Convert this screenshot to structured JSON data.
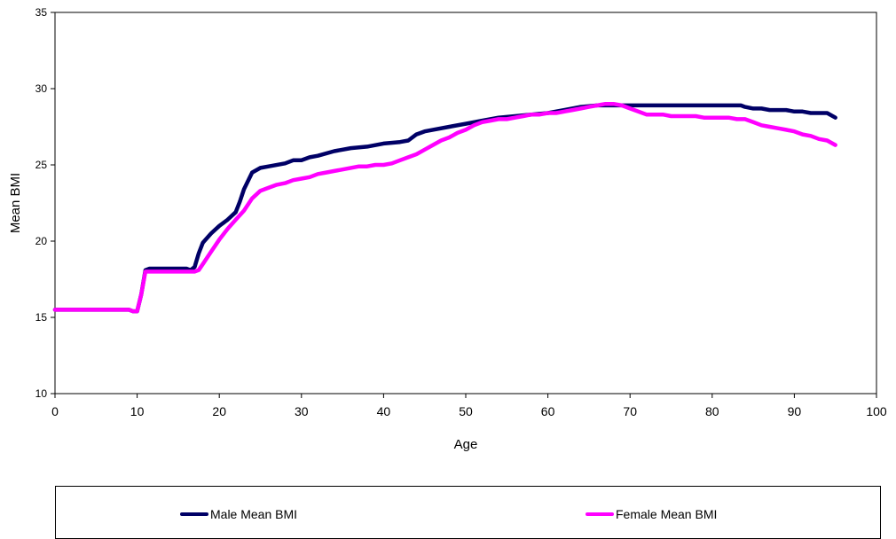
{
  "chart_data": {
    "type": "line",
    "xlabel": "Age",
    "ylabel": "Mean  BMI",
    "xlim": [
      0,
      100
    ],
    "ylim": [
      10,
      35
    ],
    "xticks": [
      0,
      10,
      20,
      30,
      40,
      50,
      60,
      70,
      80,
      90,
      100
    ],
    "yticks": [
      10,
      15,
      20,
      25,
      30,
      35
    ],
    "legend_position": "bottom",
    "series": [
      {
        "name": "Male Mean BMI",
        "color": "#000066",
        "x": [
          0,
          9,
          9.5,
          10,
          10.5,
          11,
          11.5,
          12,
          14,
          16,
          16.5,
          17,
          17.5,
          18,
          19,
          20,
          21,
          22,
          22.5,
          23,
          24,
          25,
          26,
          28,
          29,
          30,
          31,
          32,
          34,
          36,
          38,
          40,
          42,
          43,
          44,
          45,
          46,
          48,
          50,
          52,
          54,
          56,
          58,
          60,
          62,
          64,
          66,
          68,
          70,
          72,
          74,
          76,
          78,
          80,
          82,
          83.5,
          84,
          85,
          86,
          87,
          88,
          89,
          90,
          91,
          92,
          93,
          94,
          95
        ],
        "y": [
          15.5,
          15.5,
          15.4,
          15.4,
          16.5,
          18.1,
          18.2,
          18.2,
          18.2,
          18.2,
          18.1,
          18.3,
          19.2,
          19.9,
          20.5,
          21.0,
          21.4,
          21.9,
          22.6,
          23.4,
          24.5,
          24.8,
          24.9,
          25.1,
          25.3,
          25.3,
          25.5,
          25.6,
          25.9,
          26.1,
          26.2,
          26.4,
          26.5,
          26.6,
          27.0,
          27.2,
          27.3,
          27.5,
          27.7,
          27.9,
          28.1,
          28.2,
          28.3,
          28.4,
          28.6,
          28.8,
          28.9,
          28.9,
          28.9,
          28.9,
          28.9,
          28.9,
          28.9,
          28.9,
          28.9,
          28.9,
          28.8,
          28.7,
          28.7,
          28.6,
          28.6,
          28.6,
          28.5,
          28.5,
          28.4,
          28.4,
          28.4,
          28.1
        ]
      },
      {
        "name": "Female Mean BMI",
        "color": "#ff00ff",
        "x": [
          0,
          9,
          9.5,
          10,
          10.5,
          11,
          11.5,
          12,
          14,
          16,
          17,
          17.5,
          18,
          19,
          20,
          21,
          22,
          23,
          24,
          25,
          26,
          27,
          28,
          29,
          30,
          31,
          32,
          33,
          34,
          35,
          36,
          37,
          38,
          39,
          40,
          41,
          42,
          43,
          44,
          45,
          46,
          47,
          48,
          49,
          50,
          51,
          52,
          53,
          54,
          55,
          56,
          57,
          58,
          59,
          60,
          61,
          62,
          63,
          64,
          65,
          66,
          67,
          68,
          69,
          70,
          71,
          72,
          73,
          74,
          75,
          76,
          77,
          78,
          79,
          80,
          81,
          82,
          83,
          84,
          85,
          86,
          87,
          88,
          89,
          90,
          91,
          92,
          93,
          94,
          95
        ],
        "y": [
          15.5,
          15.5,
          15.4,
          15.4,
          16.5,
          18.0,
          18.0,
          18.0,
          18.0,
          18.0,
          18.0,
          18.1,
          18.5,
          19.3,
          20.1,
          20.8,
          21.4,
          22.0,
          22.8,
          23.3,
          23.5,
          23.7,
          23.8,
          24.0,
          24.1,
          24.2,
          24.4,
          24.5,
          24.6,
          24.7,
          24.8,
          24.9,
          24.9,
          25.0,
          25.0,
          25.1,
          25.3,
          25.5,
          25.7,
          26.0,
          26.3,
          26.6,
          26.8,
          27.1,
          27.3,
          27.6,
          27.8,
          27.9,
          28.0,
          28.0,
          28.1,
          28.2,
          28.3,
          28.3,
          28.4,
          28.4,
          28.5,
          28.6,
          28.7,
          28.8,
          28.9,
          29.0,
          29.0,
          28.9,
          28.7,
          28.5,
          28.3,
          28.3,
          28.3,
          28.2,
          28.2,
          28.2,
          28.2,
          28.1,
          28.1,
          28.1,
          28.1,
          28.0,
          28.0,
          27.8,
          27.6,
          27.5,
          27.4,
          27.3,
          27.2,
          27.0,
          26.9,
          26.7,
          26.6,
          26.3
        ]
      }
    ]
  }
}
